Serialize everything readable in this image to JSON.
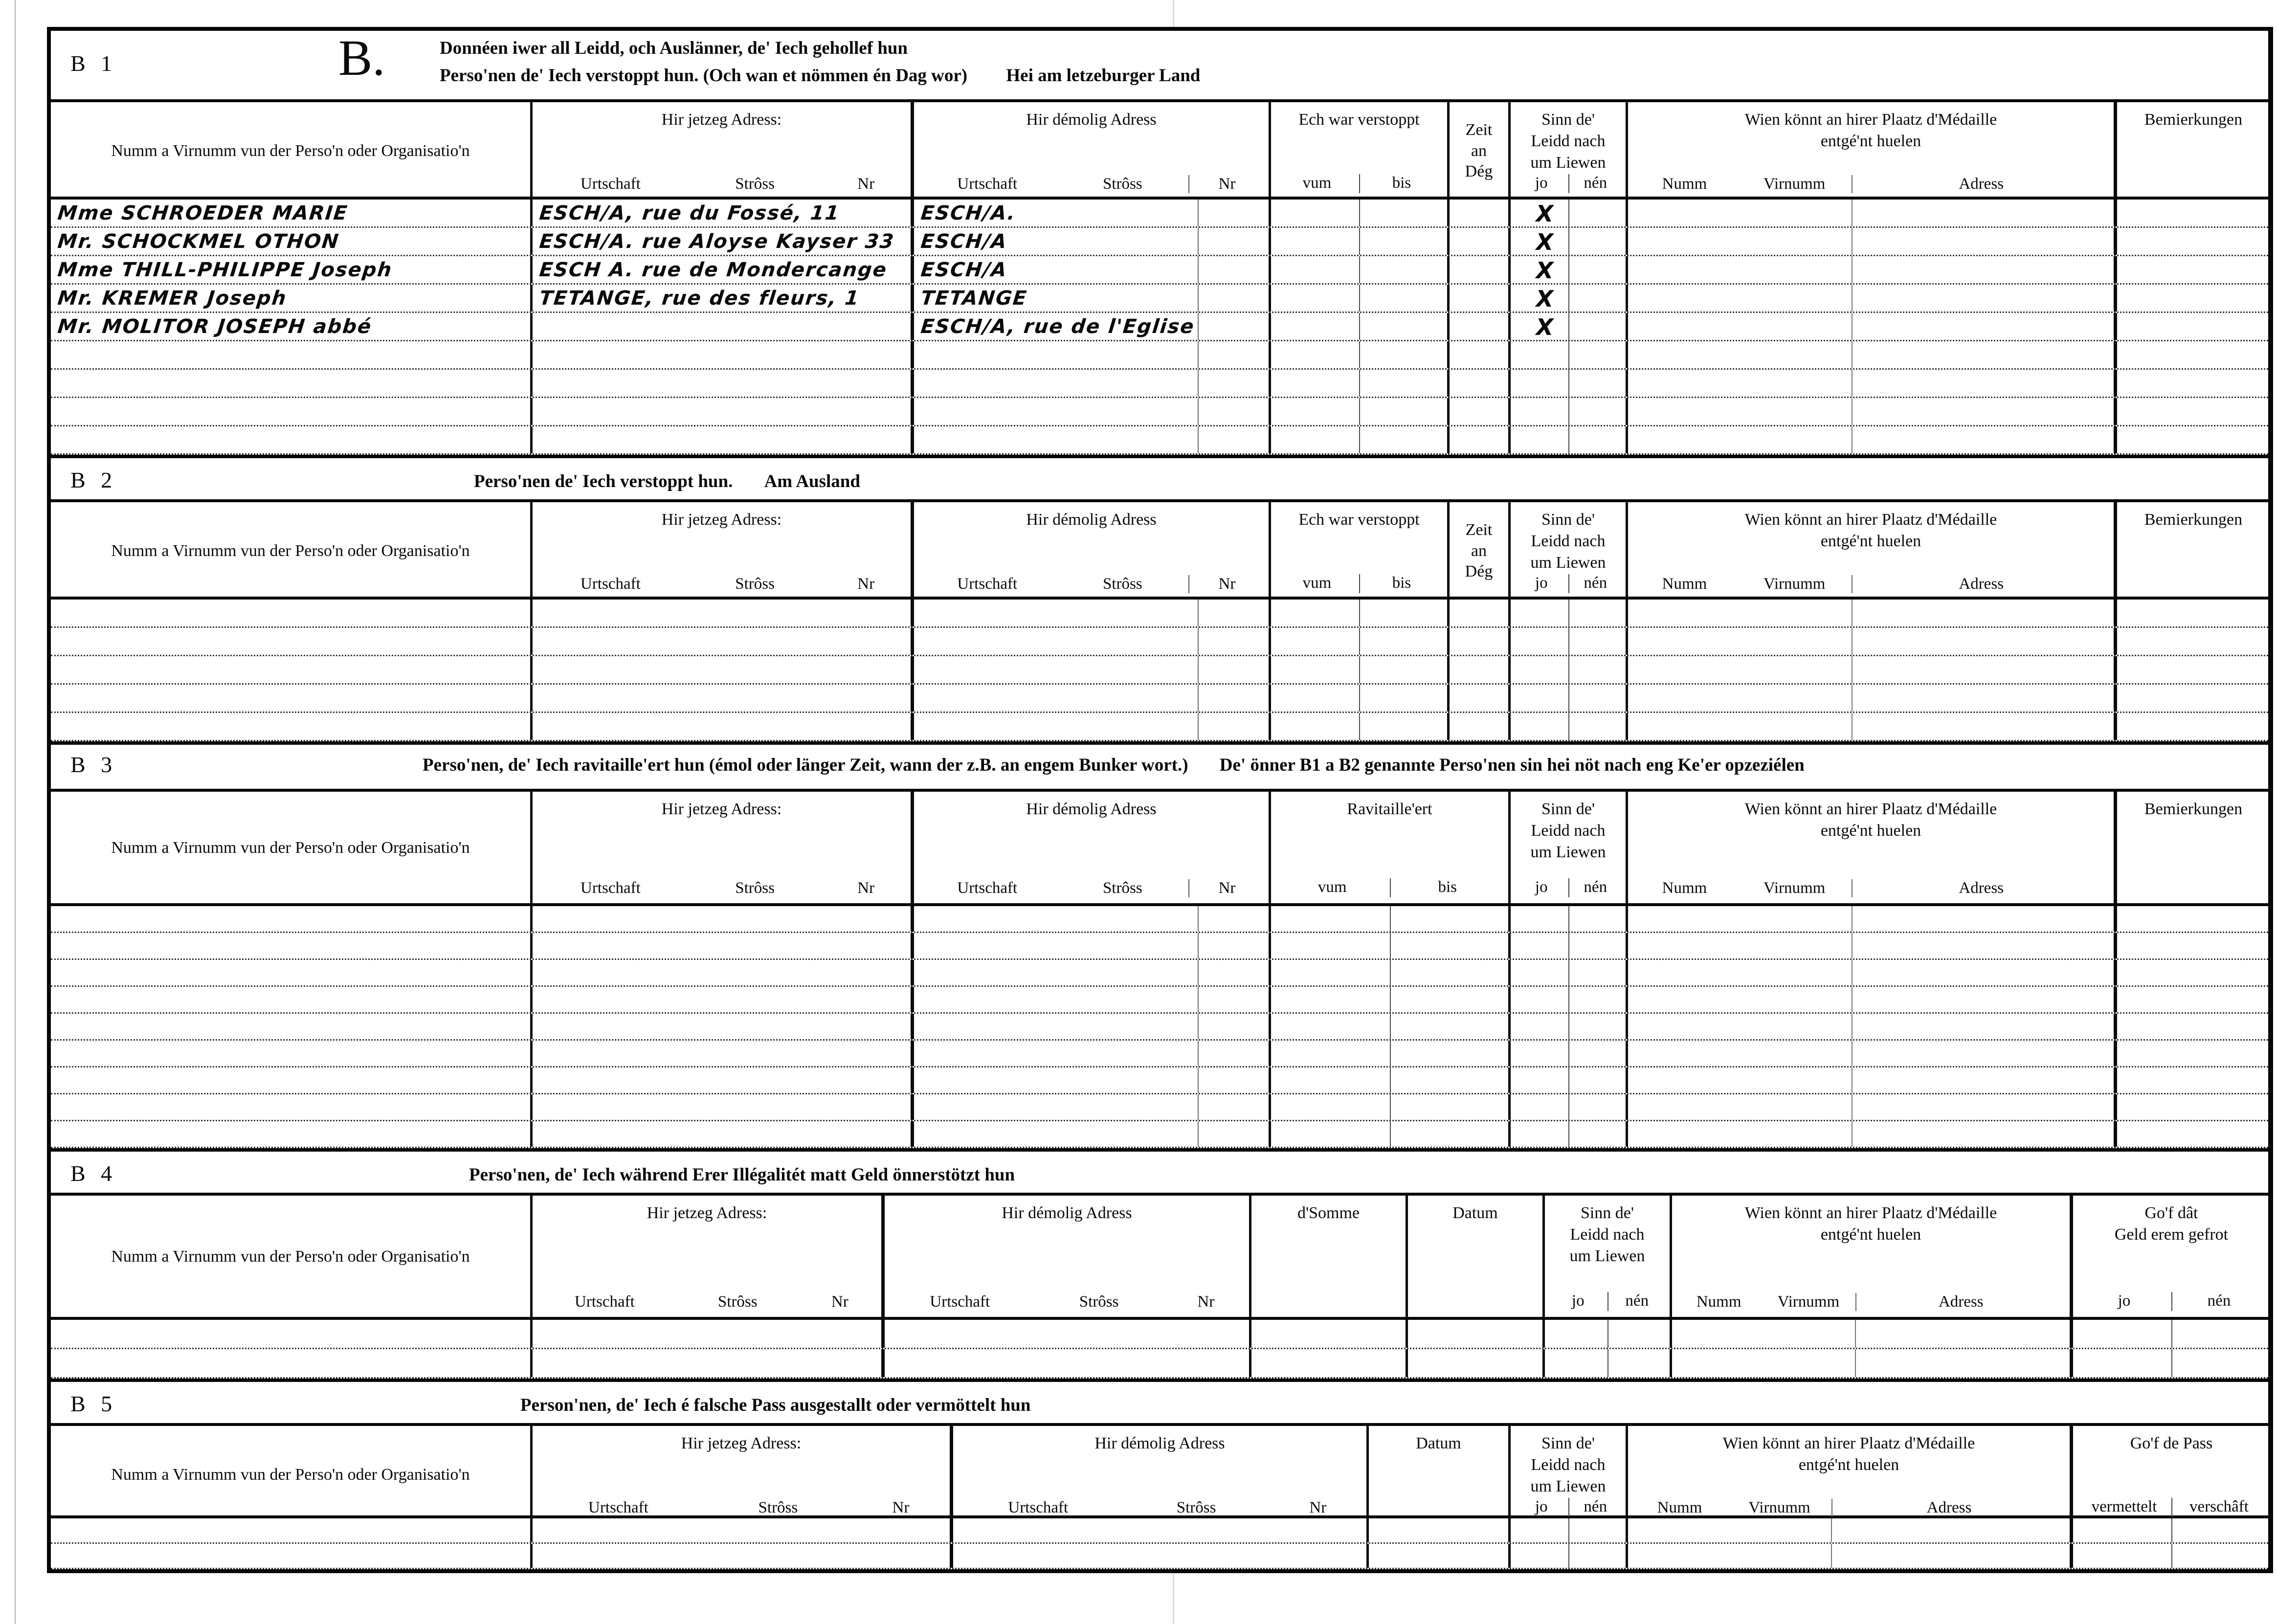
{
  "form": {
    "common": {
      "name": "Numm a Virnumm vun der Perso'n oder Organisatio'n",
      "cur": "Hir jetzeg Adress:",
      "old": "Hir démolig Adress",
      "urtschaft": "Urtschaft",
      "stross": "Strôss",
      "nr": "Nr",
      "hidden": "Ech war verstoppt",
      "vum": "vum",
      "bis": "bis",
      "zeit1": "Zeit",
      "zeit2": "an",
      "zeit3": "Dég",
      "alive1": "Sinn de'",
      "alive2": "Leidd nach",
      "alive3": "um Liewen",
      "jo": "jo",
      "nen": "nén",
      "medal1": "Wien könnt an hirer Plaatz d'Médaille",
      "medal2": "entgé'nt huelen",
      "numm": "Numm",
      "virnumm": "Virnumm",
      "adress": "Adress",
      "rem": "Bemierkungen"
    },
    "b1": {
      "label": "B 1",
      "letter": "B.",
      "title1": "Donnéen iwer all Leidd, och Auslänner, de' Iech gehollef hun",
      "title2": "Perso'nen de' Iech verstoppt hun. (Och wan et nömmen én Dag wor)",
      "note": "Hei am letzeburger Land",
      "rows": [
        {
          "name": "Mme SCHROEDER MARIE",
          "cur": "ESCH/A, rue du Fossé, 11",
          "old": "ESCH/A.",
          "jo": "X"
        },
        {
          "name": "Mr. SCHOCKMEL OTHON",
          "cur": "ESCH/A. rue Aloyse Kayser 33",
          "old": "ESCH/A",
          "jo": "X"
        },
        {
          "name": "Mme THILL-PHILIPPE Joseph",
          "cur": "ESCH A. rue de Mondercange",
          "old": "ESCH/A",
          "jo": "X"
        },
        {
          "name": "Mr. KREMER Joseph",
          "cur": "TETANGE, rue des fleurs, 1",
          "old": "TETANGE",
          "jo": "X"
        },
        {
          "name": "Mr. MOLITOR JOSEPH abbé",
          "cur": "",
          "old": "ESCH/A, rue de l'Eglise",
          "jo": "X"
        }
      ]
    },
    "b2": {
      "label": "B 2",
      "title": "Perso'nen de' Iech verstoppt hun.",
      "note": "Am Ausland"
    },
    "b3": {
      "label": "B 3",
      "title1": "Perso'nen, de' Iech ravitaille'ert hun (émol oder länger Zeit, wann der z.B. an engem Bunker wort.)",
      "title2": "De' önner B1 a B2 genannte Perso'nen sin hei nöt nach eng Ke'er opzeziélen",
      "rav": "Ravitaille'ert"
    },
    "b4": {
      "label": "B 4",
      "title": "Perso'nen, de' Iech während Erer Illégalitét matt Geld önnerstötzt hun",
      "somme": "d'Somme",
      "datum": "Datum",
      "gof1": "Go'f dât",
      "gof2": "Geld erem gefrot"
    },
    "b5": {
      "label": "B 5",
      "title": "Person'nen, de' Iech é falsche Pass ausgestallt oder vermöttelt hun",
      "datum": "Datum",
      "gof": "Go'f de Pass",
      "vermettelt": "vermettelt",
      "verschaft": "verschâft"
    }
  }
}
